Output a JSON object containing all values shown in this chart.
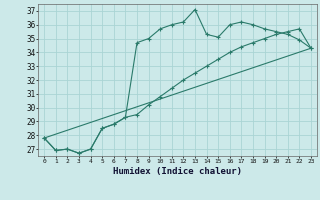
{
  "xlabel": "Humidex (Indice chaleur)",
  "ylabel": "",
  "background_color": "#cce9e9",
  "grid_color": "#aad4d4",
  "line_color": "#2a7a6a",
  "xlim": [
    -0.5,
    23.5
  ],
  "ylim": [
    26.5,
    37.5
  ],
  "xticks": [
    0,
    1,
    2,
    3,
    4,
    5,
    6,
    7,
    8,
    9,
    10,
    11,
    12,
    13,
    14,
    15,
    16,
    17,
    18,
    19,
    20,
    21,
    22,
    23
  ],
  "yticks": [
    27,
    28,
    29,
    30,
    31,
    32,
    33,
    34,
    35,
    36,
    37
  ],
  "line1_x": [
    0,
    1,
    2,
    3,
    4,
    5,
    6,
    7,
    8,
    9,
    10,
    11,
    12,
    13,
    14,
    15,
    16,
    17,
    18,
    19,
    20,
    21,
    22,
    23
  ],
  "line1_y": [
    27.8,
    26.9,
    27.0,
    26.7,
    27.0,
    28.5,
    28.8,
    29.3,
    34.7,
    35.0,
    35.7,
    36.0,
    36.2,
    37.1,
    35.3,
    35.1,
    36.0,
    36.2,
    36.0,
    35.7,
    35.5,
    35.3,
    34.9,
    34.3
  ],
  "line2_x": [
    0,
    1,
    2,
    3,
    4,
    5,
    6,
    7,
    8,
    9,
    10,
    11,
    12,
    13,
    14,
    15,
    16,
    17,
    18,
    19,
    20,
    21,
    22,
    23
  ],
  "line2_y": [
    27.8,
    26.9,
    27.0,
    26.7,
    27.0,
    28.5,
    28.8,
    29.3,
    29.5,
    30.2,
    30.8,
    31.4,
    32.0,
    32.5,
    33.0,
    33.5,
    34.0,
    34.4,
    34.7,
    35.0,
    35.3,
    35.5,
    35.7,
    34.3
  ],
  "line3_x": [
    0,
    23
  ],
  "line3_y": [
    27.8,
    34.3
  ]
}
